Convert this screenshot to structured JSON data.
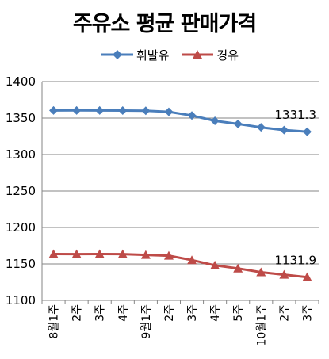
{
  "chart_data": {
    "type": "line",
    "title": "주유소 평균 판매가격",
    "xlabel": "",
    "ylabel": "",
    "categories": [
      "8월1주",
      "2주",
      "3주",
      "4주",
      "9월1주",
      "2주",
      "3주",
      "4주",
      "5주",
      "10월1주",
      "2주",
      "3주"
    ],
    "ylim": [
      1100,
      1400
    ],
    "yticks": [
      1100,
      1150,
      1200,
      1250,
      1300,
      1350,
      1400
    ],
    "grid": true,
    "legend_position": "top",
    "series": [
      {
        "name": "휘발유",
        "color": "#4a7ebb",
        "marker": "diamond",
        "values": [
          1360.4,
          1360.5,
          1360.4,
          1360.3,
          1360.0,
          1358.6,
          1353.5,
          1346.2,
          1342.0,
          1337.3,
          1333.6,
          1331.3
        ],
        "end_label": "1331.3"
      },
      {
        "name": "경유",
        "color": "#be4b48",
        "marker": "triangle",
        "values": [
          1163.6,
          1163.5,
          1163.6,
          1163.5,
          1162.4,
          1161.3,
          1155.2,
          1148.0,
          1143.8,
          1138.6,
          1135.2,
          1131.9
        ],
        "end_label": "1131.9"
      }
    ]
  }
}
